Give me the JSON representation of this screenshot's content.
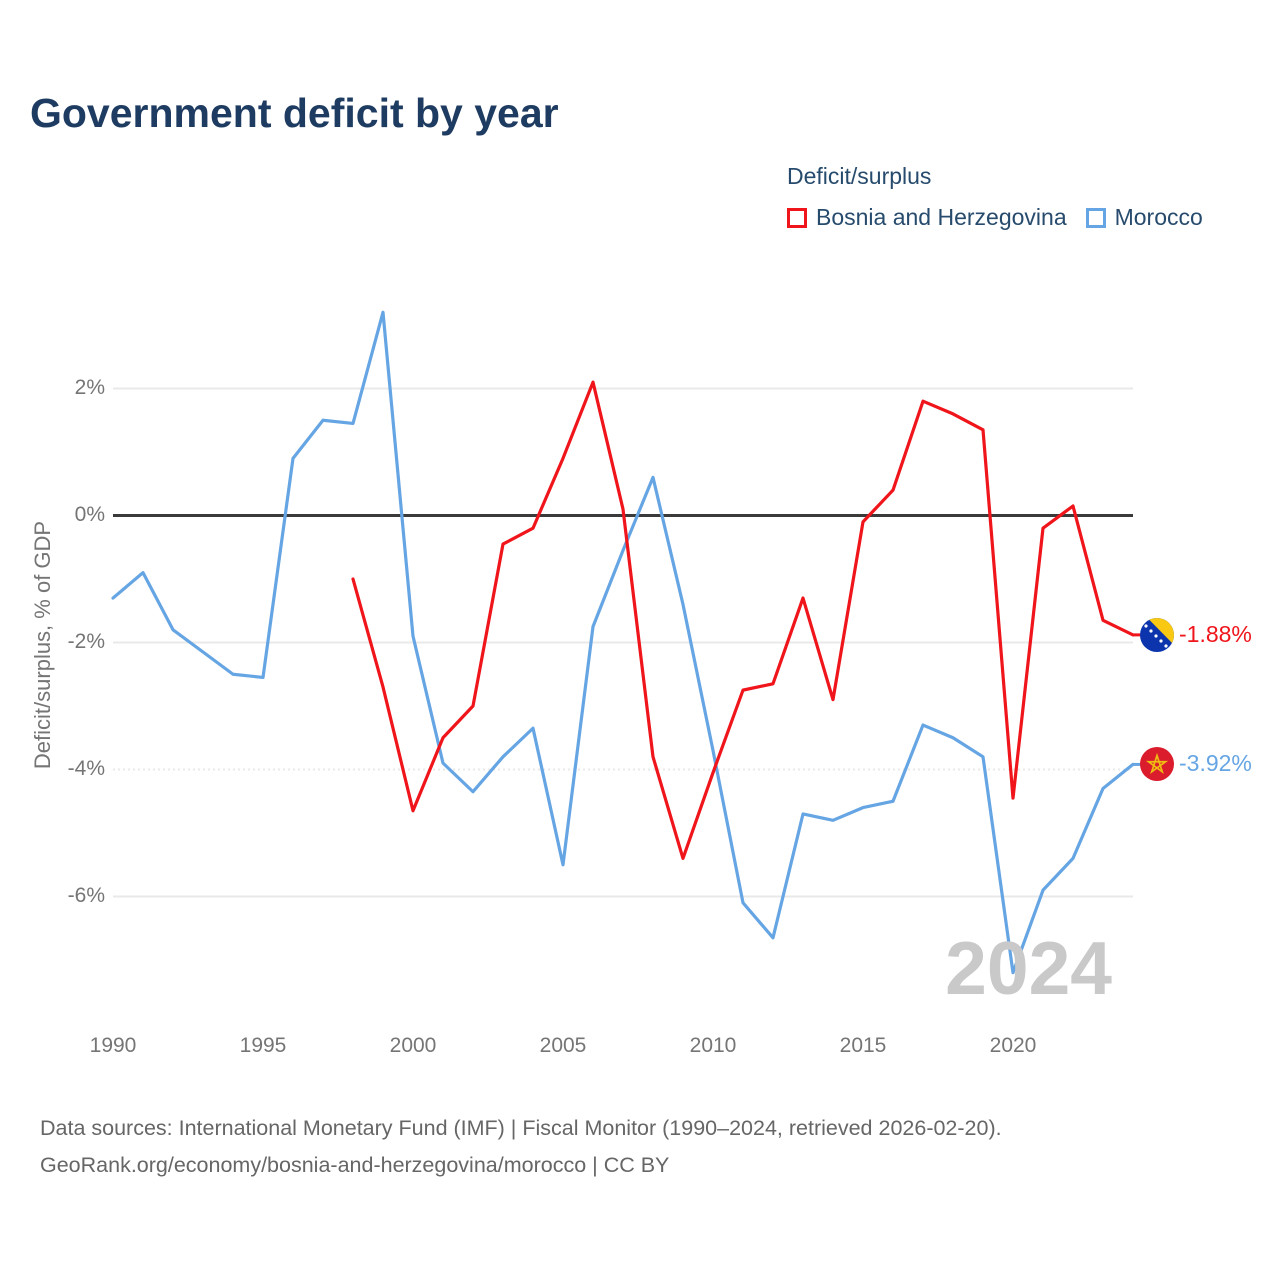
{
  "header": {
    "title": "Government deficit by year"
  },
  "legend": {
    "title": "Deficit/surplus",
    "items": [
      {
        "label": "Bosnia and Herzegovina",
        "color": "#ef151b"
      },
      {
        "label": "Morocco",
        "color": "#66a5e3"
      }
    ]
  },
  "chart_data": {
    "type": "line",
    "title": "Government deficit by year",
    "xlabel": "",
    "ylabel": "Deficit/surplus, % of GDP",
    "xlim": [
      1990,
      2024
    ],
    "ylim": [
      -7.6,
      3.6
    ],
    "grid": true,
    "zero_line": true,
    "watermark": "2024",
    "x_ticks": [
      1990,
      1995,
      2000,
      2005,
      2010,
      2015,
      2020
    ],
    "y_ticks": [
      {
        "value": 2,
        "label": "2%",
        "style": "solid"
      },
      {
        "value": 0,
        "label": "0%",
        "style": "zero"
      },
      {
        "value": -2,
        "label": "-2%",
        "style": "solid"
      },
      {
        "value": -4,
        "label": "-4%",
        "style": "dotted"
      },
      {
        "value": -6,
        "label": "-6%",
        "style": "solid"
      }
    ],
    "series": [
      {
        "id": "bosnia-and-herzegovina",
        "name": "Bosnia and Herzegovina",
        "color": "#ef151b",
        "end_label": "-1.88%",
        "years": [
          1998,
          1999,
          2000,
          2001,
          2002,
          2003,
          2004,
          2005,
          2006,
          2007,
          2008,
          2009,
          2010,
          2011,
          2012,
          2013,
          2014,
          2015,
          2016,
          2017,
          2018,
          2019,
          2020,
          2021,
          2022,
          2023,
          2024
        ],
        "values": [
          -1.0,
          -2.7,
          -4.65,
          -3.5,
          -3.0,
          -0.45,
          -0.2,
          0.9,
          2.1,
          0.1,
          -3.8,
          -5.4,
          -4.05,
          -2.75,
          -2.65,
          -1.3,
          -2.9,
          -0.1,
          0.4,
          1.8,
          1.6,
          1.35,
          -4.45,
          -0.2,
          0.15,
          -1.65,
          -1.88
        ]
      },
      {
        "id": "morocco",
        "name": "Morocco",
        "color": "#66a5e3",
        "end_label": "-3.92%",
        "years": [
          1990,
          1991,
          1992,
          1993,
          1994,
          1995,
          1996,
          1997,
          1998,
          1999,
          2000,
          2001,
          2002,
          2003,
          2004,
          2005,
          2006,
          2007,
          2008,
          2009,
          2010,
          2011,
          2012,
          2013,
          2014,
          2015,
          2016,
          2017,
          2018,
          2019,
          2020,
          2021,
          2022,
          2023,
          2024
        ],
        "values": [
          -1.3,
          -0.9,
          -1.8,
          -2.15,
          -2.5,
          -2.55,
          0.9,
          1.5,
          1.45,
          3.2,
          -1.9,
          -3.9,
          -4.35,
          -3.8,
          -3.35,
          -5.5,
          -1.75,
          -0.55,
          0.6,
          -1.4,
          -3.7,
          -6.1,
          -6.65,
          -4.7,
          -4.8,
          -4.6,
          -4.5,
          -3.3,
          -3.5,
          -3.8,
          -7.2,
          -5.9,
          -5.4,
          -4.3,
          -3.92
        ]
      }
    ]
  },
  "footer": {
    "line1": "Data sources: International Monetary Fund (IMF) | Fiscal Monitor (1990–2024, retrieved 2026-02-20).",
    "line2": "GeoRank.org/economy/bosnia-and-herzegovina/morocco | CC BY"
  }
}
